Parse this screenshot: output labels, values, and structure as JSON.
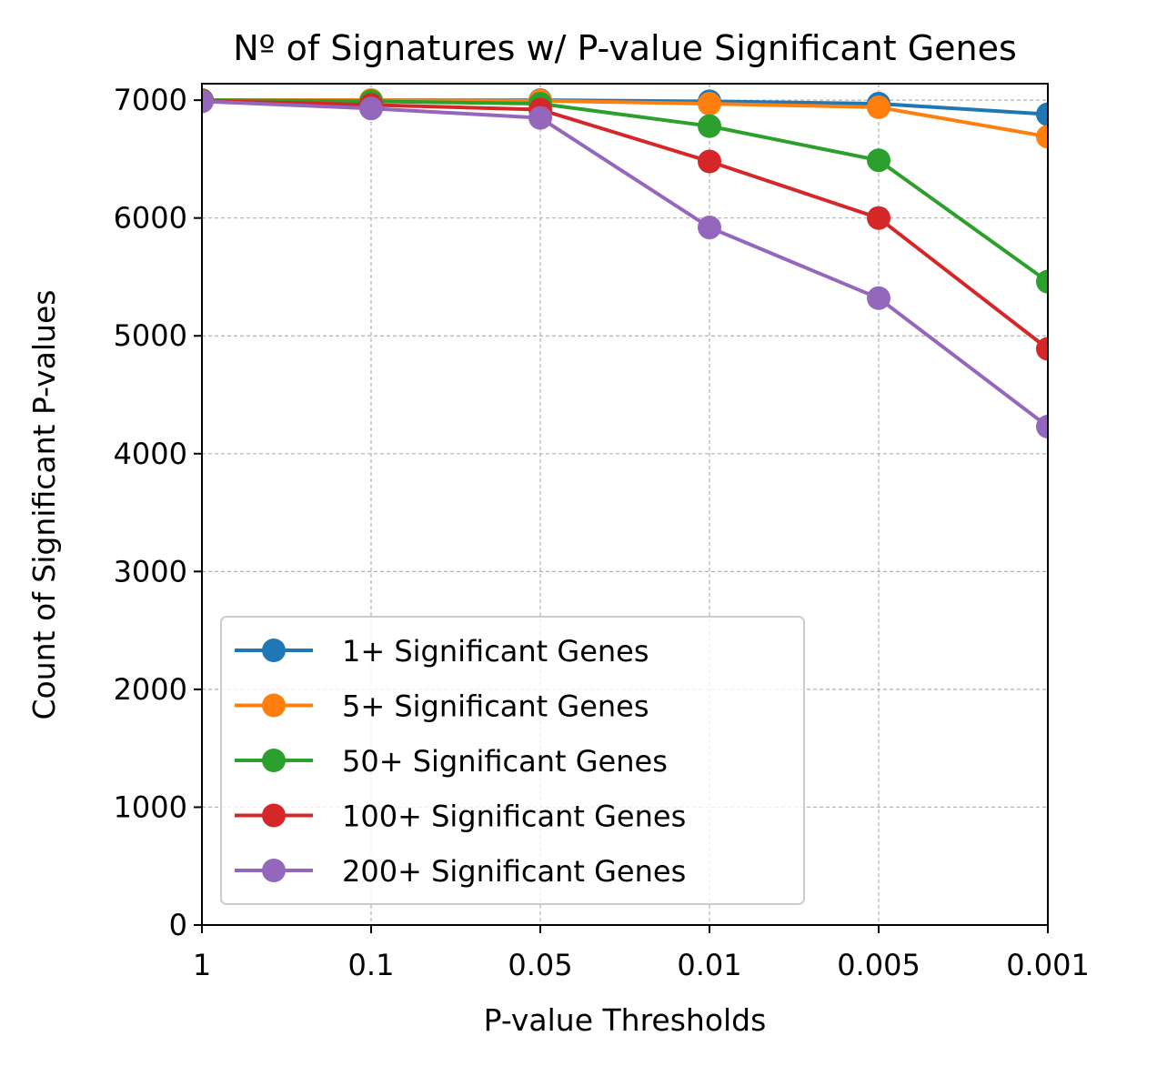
{
  "chart_data": {
    "type": "line",
    "title": "Nº of Signatures w/ P-value Significant Genes",
    "xlabel": "P-value Thresholds",
    "ylabel": "Count of Significant P-values",
    "categories": [
      "1",
      "0.1",
      "0.05",
      "0.01",
      "0.005",
      "0.001"
    ],
    "ylim": [
      0,
      7140
    ],
    "yticks": [
      0,
      1000,
      2000,
      3000,
      4000,
      5000,
      6000,
      7000
    ],
    "grid": true,
    "legend_position": "lower-left",
    "series": [
      {
        "name": "1+ Significant Genes",
        "color": "#1f77b4",
        "values": [
          7000,
          7000,
          7000,
          6990,
          6970,
          6880
        ]
      },
      {
        "name": "5+ Significant Genes",
        "color": "#ff7f0e",
        "values": [
          7000,
          7000,
          6995,
          6970,
          6940,
          6690
        ]
      },
      {
        "name": "50+ Significant Genes",
        "color": "#2ca02c",
        "values": [
          7000,
          6990,
          6970,
          6780,
          6490,
          5460
        ]
      },
      {
        "name": "100+ Significant Genes",
        "color": "#d62728",
        "values": [
          6995,
          6960,
          6920,
          6480,
          6000,
          4890
        ]
      },
      {
        "name": "200+ Significant Genes",
        "color": "#9467bd",
        "values": [
          6990,
          6930,
          6850,
          5920,
          5320,
          4230
        ]
      }
    ]
  }
}
